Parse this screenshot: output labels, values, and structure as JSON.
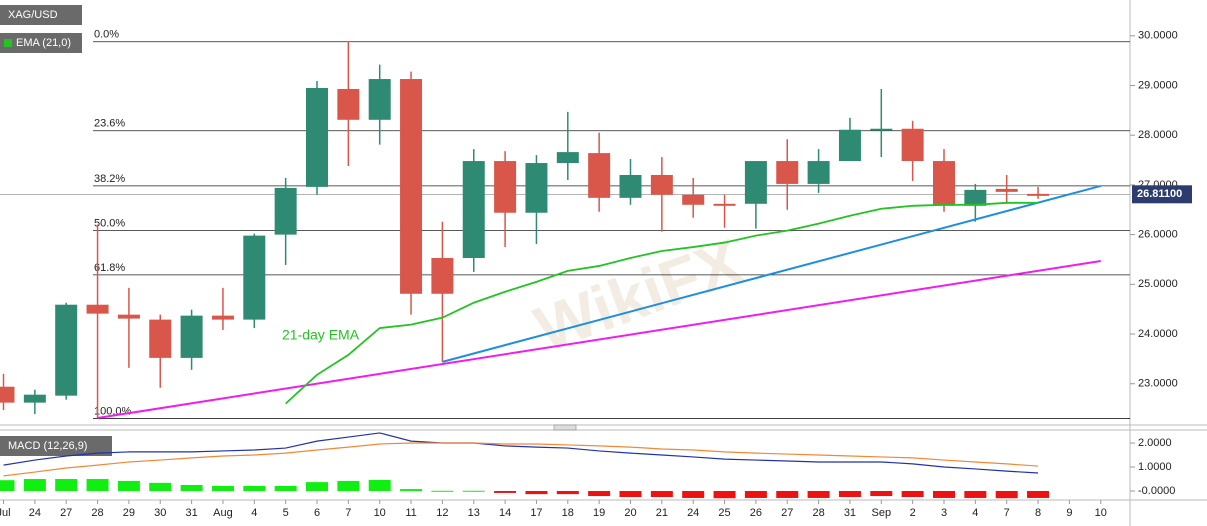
{
  "chart_data": [
    {
      "type": "candlestick",
      "title": "XAG/USD",
      "categories": [
        "Jul",
        "24",
        "27",
        "28",
        "29",
        "30",
        "31",
        "Aug",
        "4",
        "5",
        "6",
        "7",
        "10",
        "11",
        "12",
        "13",
        "14",
        "17",
        "18",
        "19",
        "20",
        "21",
        "24",
        "25",
        "26",
        "27",
        "28",
        "31",
        "Sep",
        "2",
        "3",
        "4",
        "7",
        "8",
        "9",
        "10"
      ],
      "open": [
        22.94,
        22.62,
        22.76,
        24.59,
        24.39,
        24.29,
        23.52,
        24.37,
        24.29,
        26.0,
        26.96,
        28.93,
        28.31,
        29.13,
        25.53,
        25.53,
        27.48,
        26.44,
        27.44,
        27.64,
        26.74,
        27.2,
        26.8,
        26.62,
        26.62,
        27.48,
        27.02,
        27.48,
        28.11,
        28.13,
        27.48,
        26.58,
        26.92,
        26.82,
        null,
        null
      ],
      "high": [
        23.2,
        22.88,
        24.63,
        26.2,
        24.93,
        24.39,
        24.49,
        24.93,
        26.02,
        27.14,
        29.09,
        29.88,
        29.42,
        29.28,
        26.26,
        27.72,
        27.68,
        27.6,
        28.47,
        28.05,
        27.52,
        27.56,
        27.14,
        26.8,
        27.48,
        27.92,
        27.72,
        28.35,
        28.93,
        28.29,
        27.72,
        27.02,
        27.2,
        26.96,
        null,
        null
      ],
      "low": [
        22.47,
        22.39,
        22.68,
        22.31,
        23.32,
        22.92,
        23.28,
        24.08,
        24.12,
        25.39,
        26.8,
        27.38,
        27.81,
        24.39,
        23.44,
        25.25,
        25.75,
        25.81,
        27.1,
        26.46,
        26.6,
        26.06,
        26.34,
        26.14,
        26.12,
        26.5,
        26.84,
        27.48,
        27.56,
        27.08,
        26.46,
        26.26,
        26.62,
        26.72,
        null,
        null
      ],
      "close": [
        22.62,
        22.78,
        24.59,
        24.41,
        24.31,
        23.52,
        24.37,
        24.29,
        25.98,
        26.94,
        28.95,
        28.31,
        29.13,
        24.81,
        24.81,
        27.48,
        26.44,
        27.44,
        27.66,
        26.74,
        27.2,
        26.8,
        26.6,
        26.58,
        27.48,
        27.02,
        27.48,
        28.11,
        28.13,
        27.48,
        26.58,
        26.9,
        26.86,
        26.79,
        null,
        null
      ],
      "up_color": "#2f8a73",
      "down_color": "#d9574a",
      "ylim": [
        22.17,
        30.72
      ],
      "yticks": [
        {
          "value": 23,
          "label": "23.0000"
        },
        {
          "value": 24,
          "label": "24.0000"
        },
        {
          "value": 25,
          "label": "25.0000"
        },
        {
          "value": 26,
          "label": "26.0000"
        },
        {
          "value": 27,
          "label": "27.0000"
        },
        {
          "value": 28,
          "label": "28.0000"
        },
        {
          "value": 29,
          "label": "29.0000"
        },
        {
          "value": 30,
          "label": "30.0000"
        }
      ],
      "ema": {
        "name": "EMA (21,0)",
        "annotation": "21-day EMA",
        "color": "#22c322",
        "values": [
          null,
          null,
          null,
          null,
          null,
          null,
          null,
          null,
          null,
          22.6,
          23.18,
          23.58,
          24.12,
          24.19,
          24.33,
          24.63,
          24.85,
          25.05,
          25.27,
          25.37,
          25.53,
          25.67,
          25.75,
          25.84,
          25.98,
          26.08,
          26.22,
          26.38,
          26.52,
          26.58,
          26.6,
          26.6,
          26.64,
          26.64,
          null,
          null
        ]
      },
      "fibonacci": {
        "color": "#222222",
        "levels": [
          {
            "label": "0.0%",
            "value": 29.88
          },
          {
            "label": "23.6%",
            "value": 28.09
          },
          {
            "label": "38.2%",
            "value": 26.98
          },
          {
            "label": "50.0%",
            "value": 26.08
          },
          {
            "label": "61.8%",
            "value": 25.19
          },
          {
            "label": "100.0%",
            "value": 22.3
          }
        ]
      },
      "trendlines": [
        {
          "color": "#1e8fe0",
          "x_index": [
            14,
            35
          ],
          "values": [
            23.44,
            26.98
          ]
        },
        {
          "color": "#f01cf0",
          "x_index": [
            3,
            35
          ],
          "values": [
            22.31,
            25.47
          ]
        }
      ],
      "last_price": {
        "value": 26.811,
        "label": "26.81100",
        "color": "#2c3c6e"
      },
      "watermark": "WikiFX"
    },
    {
      "type": "macd",
      "title": "MACD (12,26,9)",
      "series": [
        {
          "color": "#2233aa",
          "values": [
            1.08,
            1.29,
            1.46,
            1.58,
            1.63,
            1.63,
            1.63,
            1.67,
            1.71,
            1.79,
            2.08,
            2.25,
            2.42,
            2.08,
            2.0,
            2.0,
            1.88,
            1.83,
            1.79,
            1.67,
            1.58,
            1.5,
            1.42,
            1.33,
            1.29,
            1.25,
            1.21,
            1.21,
            1.21,
            1.13,
            1.0,
            0.92,
            0.83,
            0.75,
            null,
            null
          ]
        },
        {
          "color": "#f08838",
          "values": [
            0.63,
            0.79,
            0.96,
            1.08,
            1.21,
            1.29,
            1.38,
            1.46,
            1.5,
            1.58,
            1.71,
            1.83,
            1.96,
            2.0,
            2.0,
            2.0,
            1.96,
            1.96,
            1.92,
            1.88,
            1.83,
            1.75,
            1.71,
            1.63,
            1.58,
            1.54,
            1.5,
            1.46,
            1.42,
            1.38,
            1.29,
            1.21,
            1.13,
            1.04,
            null,
            null
          ]
        }
      ],
      "histogram": [
        0.45,
        0.5,
        0.5,
        0.5,
        0.42,
        0.34,
        0.25,
        0.21,
        0.21,
        0.21,
        0.37,
        0.42,
        0.46,
        0.08,
        0.01,
        0.01,
        -0.08,
        -0.13,
        -0.13,
        -0.21,
        -0.25,
        -0.25,
        -0.29,
        -0.3,
        -0.29,
        -0.29,
        -0.29,
        -0.25,
        -0.21,
        -0.25,
        -0.29,
        -0.29,
        -0.3,
        -0.29,
        null,
        null
      ],
      "pos_color": "#11ee11",
      "neg_color": "#ee1111",
      "ylim": [
        -0.375,
        2.46
      ],
      "yticks": [
        {
          "value": 2,
          "label": "2.0000"
        },
        {
          "value": 1,
          "label": "1.0000"
        },
        {
          "value": 0,
          "label": "-0.0000"
        }
      ]
    }
  ]
}
